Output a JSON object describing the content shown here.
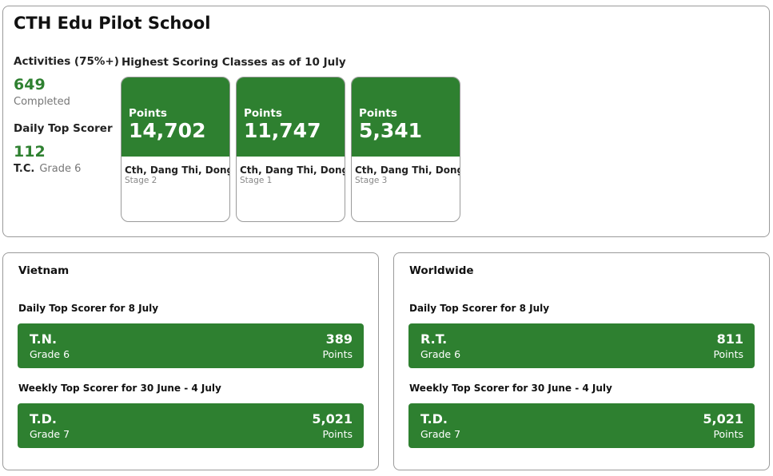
{
  "school": {
    "name": "CTH Edu Pilot School",
    "activities_label": "Activities (75%+)",
    "activities_value": "649",
    "activities_sub": "Completed",
    "daily_top_label": "Daily Top Scorer",
    "daily_top_value": "112",
    "daily_top_initials": "T.C.",
    "daily_top_grade": "Grade 6",
    "classes_title": "Highest Scoring Classes as of 10 July",
    "classes": [
      {
        "points_label": "Points",
        "points": "14,702",
        "name": "Cth, Dang Thi, Dong",
        "stage": "Stage 2"
      },
      {
        "points_label": "Points",
        "points": "11,747",
        "name": "Cth, Dang Thi, Dong",
        "stage": "Stage 1"
      },
      {
        "points_label": "Points",
        "points": "5,341",
        "name": "Cth, Dang Thi, Dong",
        "stage": "Stage 3"
      }
    ]
  },
  "vietnam": {
    "title": "Vietnam",
    "daily_title": "Daily Top Scorer for 8 July",
    "daily": {
      "name": "T.N.",
      "grade": "Grade 6",
      "points": "389",
      "unit": "Points"
    },
    "weekly_title": "Weekly Top Scorer for 30 June - 4 July",
    "weekly": {
      "name": "T.D.",
      "grade": "Grade 7",
      "points": "5,021",
      "unit": "Points"
    }
  },
  "worldwide": {
    "title": "Worldwide",
    "daily_title": "Daily Top Scorer for 8 July",
    "daily": {
      "name": "R.T.",
      "grade": "Grade 6",
      "points": "811",
      "unit": "Points"
    },
    "weekly_title": "Weekly Top Scorer for 30 June - 4 July",
    "weekly": {
      "name": "T.D.",
      "grade": "Grade 7",
      "points": "5,021",
      "unit": "Points"
    }
  },
  "colors": {
    "accent": "#2e8030",
    "border": "#9a9a9a"
  }
}
